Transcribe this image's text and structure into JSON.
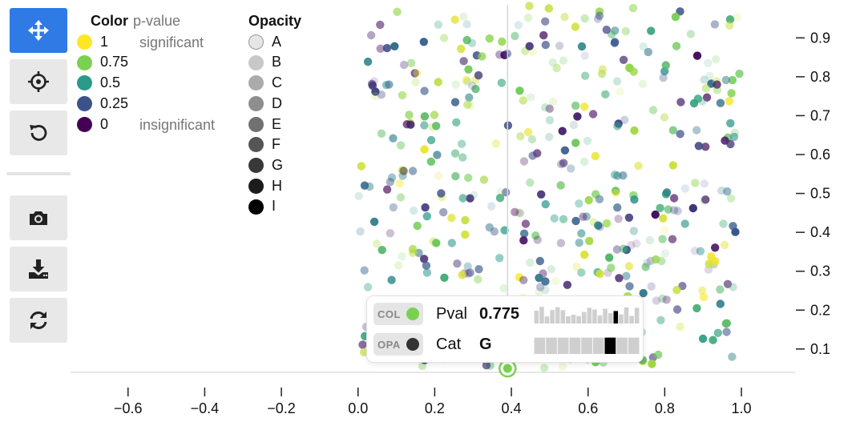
{
  "toolbar": {
    "buttons": [
      {
        "name": "pan-button",
        "icon": "move-icon",
        "active": true
      },
      {
        "name": "center-button",
        "icon": "crosshair-icon",
        "active": false
      },
      {
        "name": "reset-button",
        "icon": "undo-icon",
        "active": false
      },
      {
        "name": "screenshot-button",
        "icon": "camera-icon",
        "active": false
      },
      {
        "name": "download-button",
        "icon": "download-icon",
        "active": false
      },
      {
        "name": "refresh-button",
        "icon": "sync-icon",
        "active": false
      }
    ]
  },
  "legend_color": {
    "title": "Color",
    "subtitle": "p-value",
    "items": [
      {
        "label": "1",
        "color": "#fde725"
      },
      {
        "label": "0.75",
        "color": "#7ad151"
      },
      {
        "label": "0.5",
        "color": "#2a9a8a"
      },
      {
        "label": "0.25",
        "color": "#3b528b"
      },
      {
        "label": "0",
        "color": "#440154"
      }
    ],
    "high_note": "significant",
    "low_note": "insignificant"
  },
  "legend_opacity": {
    "title": "Opacity",
    "items": [
      {
        "label": "A",
        "shade": "#e6e6e6"
      },
      {
        "label": "B",
        "shade": "#c8c8c8"
      },
      {
        "label": "C",
        "shade": "#ababab"
      },
      {
        "label": "D",
        "shade": "#8e8e8e"
      },
      {
        "label": "E",
        "shade": "#717171"
      },
      {
        "label": "F",
        "shade": "#555555"
      },
      {
        "label": "G",
        "shade": "#383838"
      },
      {
        "label": "H",
        "shade": "#1c1c1c"
      },
      {
        "label": "I",
        "shade": "#000000"
      }
    ]
  },
  "tooltip": {
    "rows": [
      {
        "badge": "COL",
        "badge_color": "#7ad151",
        "key": "Pval",
        "value": "0.775"
      },
      {
        "badge": "OPA",
        "badge_color": "#333333",
        "key": "Cat",
        "value": "G"
      }
    ]
  },
  "chart_data": {
    "type": "scatter",
    "title": "",
    "xlabel": "",
    "ylabel": "",
    "xlim": [
      -0.75,
      1.14
    ],
    "ylim": [
      0.04,
      0.985
    ],
    "xticks": [
      "−0.6",
      "−0.4",
      "−0.2",
      "0.0",
      "0.2",
      "0.4",
      "0.6",
      "0.8",
      "1.0"
    ],
    "xtick_values": [
      -0.6,
      -0.4,
      -0.2,
      0.0,
      0.2,
      0.4,
      0.6,
      0.8,
      1.0
    ],
    "yticks": [
      "0.1",
      "0.2",
      "0.3",
      "0.4",
      "0.5",
      "0.6",
      "0.7",
      "0.8",
      "0.9"
    ],
    "ytick_values": [
      0.1,
      0.2,
      0.3,
      0.4,
      0.5,
      0.6,
      0.7,
      0.8,
      0.9
    ],
    "y_axis_side": "right",
    "grid": false,
    "crosshair_x": 0.39,
    "point_count": 480,
    "x_range_of_points": [
      0.0,
      1.0
    ],
    "color_encoding": "p-value (viridis)",
    "opacity_encoding": "category A–I",
    "selected_point": {
      "x": 0.39,
      "y": 0.05,
      "pval": 0.775,
      "cat": "G"
    }
  }
}
